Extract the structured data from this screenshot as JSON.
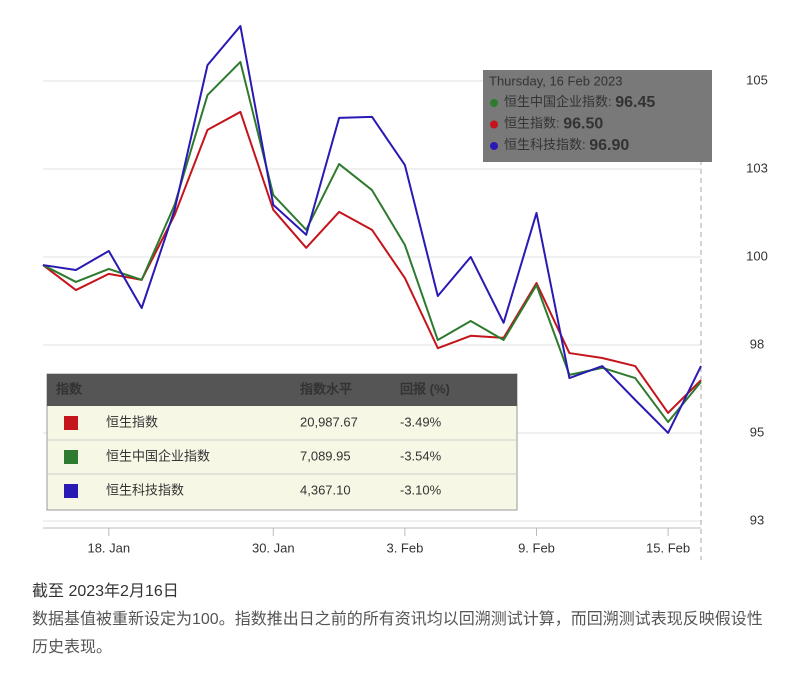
{
  "chart_data": {
    "type": "line",
    "categories": [
      null,
      null,
      "18. Jan",
      null,
      null,
      null,
      null,
      "30. Jan",
      null,
      null,
      null,
      "3. Feb",
      null,
      null,
      null,
      "9. Feb",
      null,
      null,
      null,
      "15. Feb",
      null
    ],
    "series": [
      {
        "name": "恒生中国企业指数",
        "color": "#2e7a2e",
        "values": [
          99.77,
          99.29,
          99.66,
          99.35,
          101.48,
          104.6,
          105.54,
          101.76,
          100.77,
          102.64,
          101.9,
          100.34,
          97.64,
          98.18,
          97.64,
          99.2,
          96.65,
          96.85,
          96.56,
          95.31,
          96.45
        ]
      },
      {
        "name": "恒生指数",
        "color": "#c4141c",
        "values": [
          99.77,
          99.06,
          99.52,
          99.35,
          101.19,
          103.61,
          104.12,
          101.34,
          100.26,
          101.28,
          100.77,
          99.4,
          97.41,
          97.76,
          97.7,
          99.26,
          97.27,
          97.13,
          96.9,
          95.57,
          96.5
        ]
      },
      {
        "name": "恒生科技指数",
        "color": "#2a1ab4",
        "values": [
          99.77,
          99.63,
          100.17,
          98.55,
          101.34,
          105.45,
          106.56,
          101.48,
          100.63,
          103.95,
          103.98,
          102.61,
          98.89,
          100.0,
          98.13,
          101.25,
          96.56,
          96.9,
          95.94,
          95.0,
          96.9
        ]
      }
    ],
    "ylim": [
      92.3,
      107.3
    ],
    "yticks": [
      {
        "value": 92.5,
        "label": "93"
      },
      95,
      {
        "value": 97.5,
        "label": "98"
      },
      100,
      {
        "value": 102.5,
        "label": "103"
      },
      105
    ],
    "grid": true,
    "tooltip": {
      "title": "Thursday, 16 Feb 2023",
      "value_labels": [
        "96.45",
        "96.50",
        "96.90"
      ]
    }
  },
  "table": {
    "columns": [
      "指数",
      "指数水平",
      "回报 (%)"
    ],
    "rows": [
      {
        "name": "恒生指数",
        "level": "20,987.67",
        "return": "-3.49%"
      },
      {
        "name": "恒生中国企业指数",
        "level": "7,089.95",
        "return": "-3.54%"
      },
      {
        "name": "恒生科技指数",
        "level": "4,367.10",
        "return": "-3.10%"
      }
    ]
  },
  "caption": {
    "date": "截至 2023年2月16日",
    "note": "数据基值被重新设定为100。指数推出日之前的所有资讯均以回溯测试计算，而回溯测试表现反映假设性历史表现。"
  }
}
